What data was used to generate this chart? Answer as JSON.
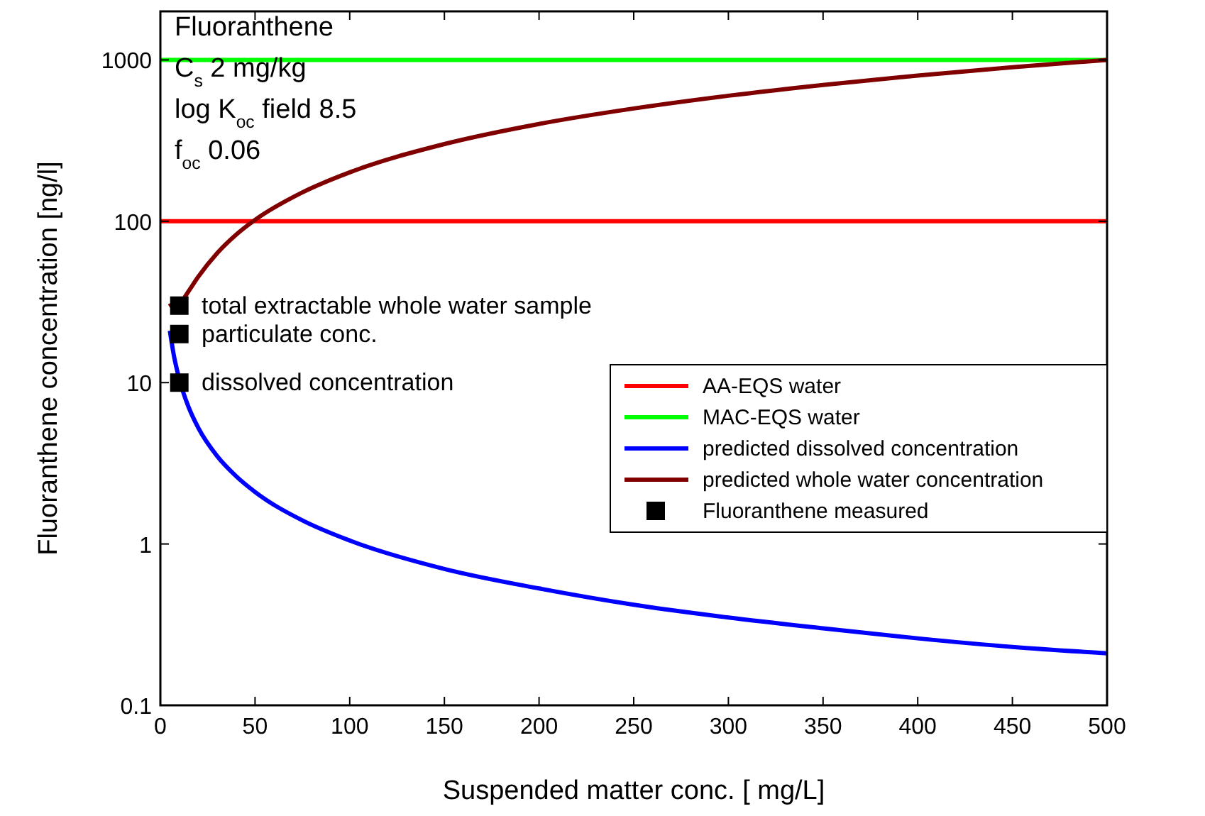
{
  "chart_data": {
    "type": "line",
    "xlabel": "Suspended matter conc. [ mg/L]",
    "ylabel": "Fluoranthene concentration [ng/l]",
    "log": "y",
    "xlim": [
      0,
      500
    ],
    "xticks": [
      0,
      50,
      100,
      150,
      200,
      250,
      300,
      350,
      400,
      450,
      500
    ],
    "ylim": [
      0.1,
      2000
    ],
    "yticks": [
      0.1,
      1,
      10,
      100,
      1000
    ],
    "grid": false,
    "legend": "right",
    "marker": "none",
    "line_style": "solid",
    "annotations": [
      "Fluoranthene",
      "C$_{s}$ 2 mg/kg",
      "log K$_{oc}$ field 8.5",
      "f$_{oc}$ 0.06",
      "total extractable whole water sample",
      "particulate conc.",
      "dissolved concentration"
    ],
    "series": [
      {
        "name": "AA-EQS water",
        "color": "#ff0000",
        "x": [
          0,
          500
        ],
        "values": [
          100,
          100
        ]
      },
      {
        "name": "MAC-EQS water",
        "color": "#00ff00",
        "x": [
          0,
          500
        ],
        "values": [
          1000,
          1000
        ]
      },
      {
        "name": "predicted dissolved concentration",
        "color": "#0000ff",
        "x": [
          5,
          7,
          10,
          15,
          20,
          30,
          40,
          50,
          75,
          100,
          150,
          200,
          250,
          300,
          350,
          400,
          450,
          500
        ],
        "values": [
          21,
          15,
          10.5,
          7,
          5.25,
          3.5,
          2.63,
          2.1,
          1.4,
          1.05,
          0.7,
          0.53,
          0.42,
          0.35,
          0.3,
          0.26,
          0.23,
          0.21
        ]
      },
      {
        "name": "predicted whole water concentration",
        "color": "#800000",
        "x": [
          5,
          7,
          10,
          15,
          20,
          30,
          40,
          50,
          75,
          100,
          150,
          200,
          250,
          300,
          350,
          400,
          450,
          500
        ],
        "values": [
          31,
          29,
          30.5,
          37,
          45.3,
          63.5,
          82.6,
          102,
          151,
          201,
          301,
          401,
          500,
          600,
          700,
          800,
          900,
          1000
        ]
      },
      {
        "name": "Fluoranthene measured",
        "type": "scatter",
        "marker": "square",
        "color": "#000000",
        "x": [
          10,
          10,
          10
        ],
        "values": [
          30,
          20,
          10
        ]
      }
    ]
  }
}
